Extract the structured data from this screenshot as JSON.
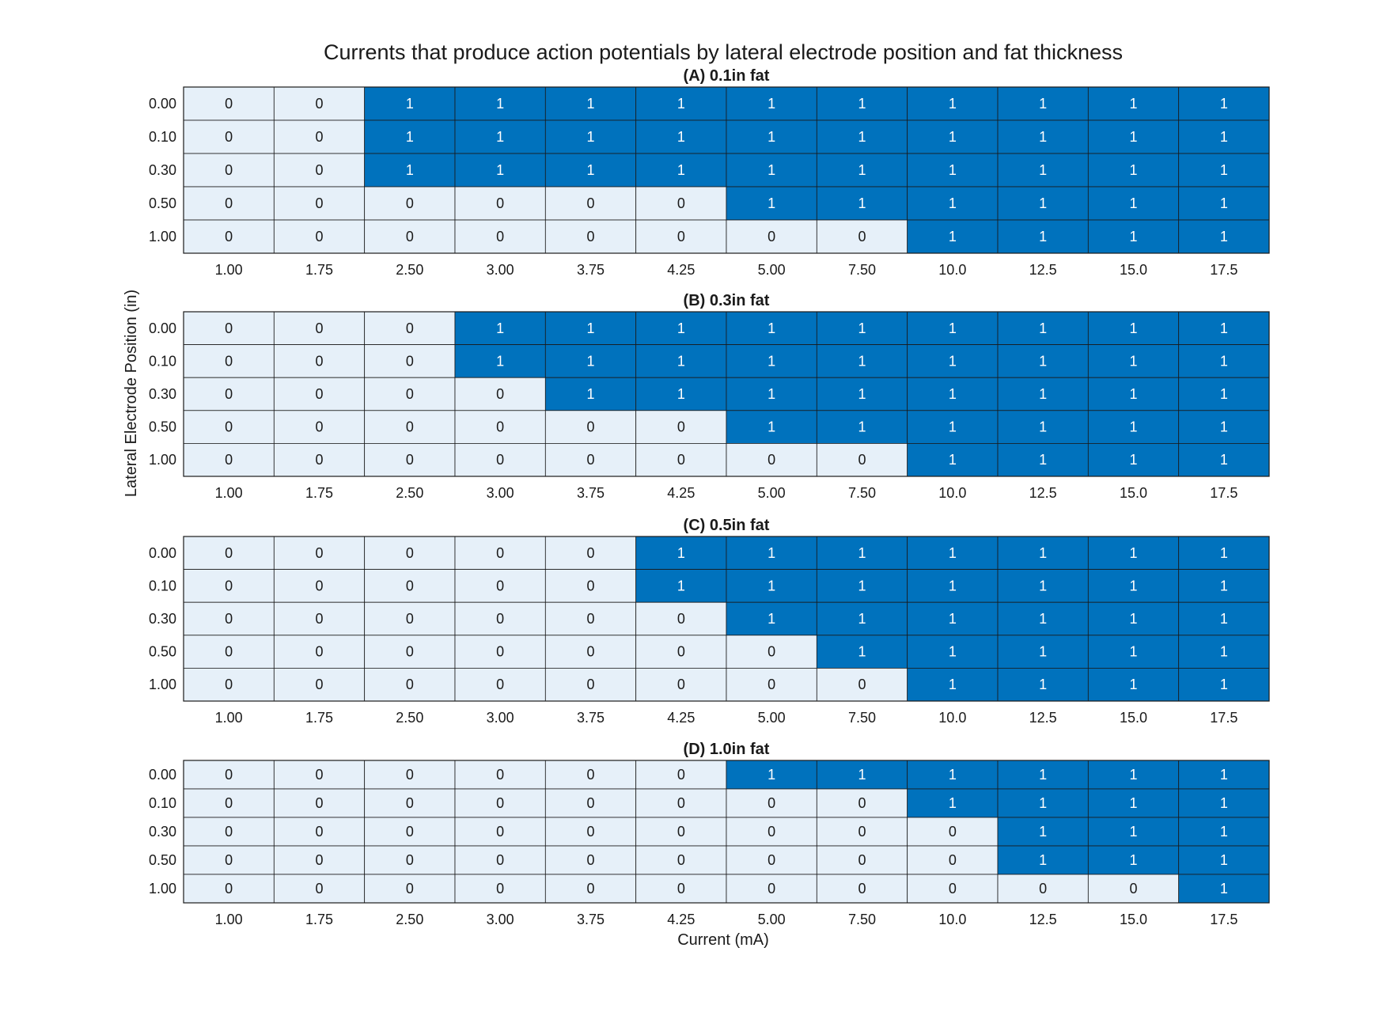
{
  "chart_data": {
    "type": "heatmap",
    "title": "Currents that produce action potentials by lateral electrode position and fat thickness",
    "xlabel": "Current (mA)",
    "ylabel": "Lateral Electrode Position (in)",
    "x_tick_labels": [
      "1.00",
      "1.75",
      "2.50",
      "3.00",
      "3.75",
      "4.25",
      "5.00",
      "7.50",
      "10.0",
      "12.5",
      "15.0",
      "17.5"
    ],
    "y_tick_labels": [
      "0.00",
      "0.10",
      "0.30",
      "0.50",
      "1.00"
    ],
    "colors": {
      "zero": "#e6f0f9",
      "one": "#0072bd",
      "text_on_zero": "#1a1a1a",
      "text_on_one": "#ffffff",
      "grid": "#1a1a1a"
    },
    "grid": true,
    "panels": [
      {
        "title": "(A) 0.1in fat",
        "values": [
          [
            0,
            0,
            1,
            1,
            1,
            1,
            1,
            1,
            1,
            1,
            1,
            1
          ],
          [
            0,
            0,
            1,
            1,
            1,
            1,
            1,
            1,
            1,
            1,
            1,
            1
          ],
          [
            0,
            0,
            1,
            1,
            1,
            1,
            1,
            1,
            1,
            1,
            1,
            1
          ],
          [
            0,
            0,
            0,
            0,
            0,
            0,
            1,
            1,
            1,
            1,
            1,
            1
          ],
          [
            0,
            0,
            0,
            0,
            0,
            0,
            0,
            0,
            1,
            1,
            1,
            1
          ]
        ]
      },
      {
        "title": "(B) 0.3in fat",
        "values": [
          [
            0,
            0,
            0,
            1,
            1,
            1,
            1,
            1,
            1,
            1,
            1,
            1
          ],
          [
            0,
            0,
            0,
            1,
            1,
            1,
            1,
            1,
            1,
            1,
            1,
            1
          ],
          [
            0,
            0,
            0,
            0,
            1,
            1,
            1,
            1,
            1,
            1,
            1,
            1
          ],
          [
            0,
            0,
            0,
            0,
            0,
            0,
            1,
            1,
            1,
            1,
            1,
            1
          ],
          [
            0,
            0,
            0,
            0,
            0,
            0,
            0,
            0,
            1,
            1,
            1,
            1
          ]
        ]
      },
      {
        "title": "(C) 0.5in fat",
        "values": [
          [
            0,
            0,
            0,
            0,
            0,
            1,
            1,
            1,
            1,
            1,
            1,
            1
          ],
          [
            0,
            0,
            0,
            0,
            0,
            1,
            1,
            1,
            1,
            1,
            1,
            1
          ],
          [
            0,
            0,
            0,
            0,
            0,
            0,
            1,
            1,
            1,
            1,
            1,
            1
          ],
          [
            0,
            0,
            0,
            0,
            0,
            0,
            0,
            1,
            1,
            1,
            1,
            1
          ],
          [
            0,
            0,
            0,
            0,
            0,
            0,
            0,
            0,
            1,
            1,
            1,
            1
          ]
        ]
      },
      {
        "title": "(D) 1.0in fat",
        "values": [
          [
            0,
            0,
            0,
            0,
            0,
            0,
            1,
            1,
            1,
            1,
            1,
            1
          ],
          [
            0,
            0,
            0,
            0,
            0,
            0,
            0,
            0,
            1,
            1,
            1,
            1
          ],
          [
            0,
            0,
            0,
            0,
            0,
            0,
            0,
            0,
            0,
            1,
            1,
            1
          ],
          [
            0,
            0,
            0,
            0,
            0,
            0,
            0,
            0,
            0,
            1,
            1,
            1
          ],
          [
            0,
            0,
            0,
            0,
            0,
            0,
            0,
            0,
            0,
            0,
            0,
            1
          ]
        ]
      }
    ]
  }
}
